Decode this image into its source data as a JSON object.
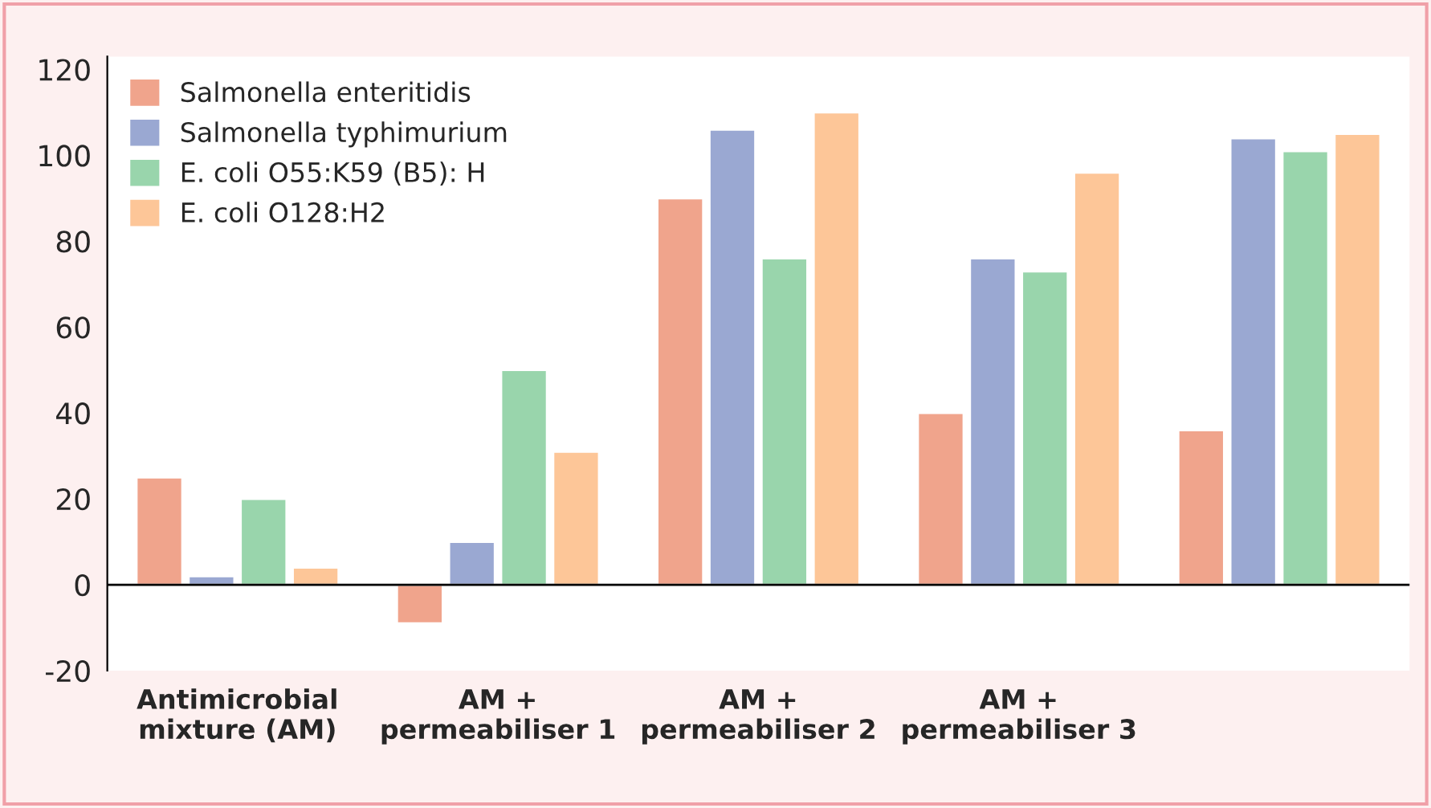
{
  "chart_data": {
    "type": "bar",
    "categories": [
      "Antimicrobial\nmixture (AM)",
      "AM +\npermeabiliser 1",
      "AM +\npermeabiliser 2",
      "AM +\npermeabiliser 3",
      null
    ],
    "series": [
      {
        "name": "Salmonella enteritidis",
        "color": "#f0a48c",
        "values": [
          25,
          -9,
          90,
          40,
          36
        ]
      },
      {
        "name": "Salmonella typhimurium",
        "color": "#9aa8d2",
        "values": [
          2,
          10,
          106,
          76,
          104
        ]
      },
      {
        "name": "E. coli O55:K59 (B5): H",
        "color": "#99d5ac",
        "values": [
          20,
          50,
          76,
          73,
          101
        ]
      },
      {
        "name": "E. coli O128:H2",
        "color": "#fdc698",
        "values": [
          4,
          31,
          110,
          96,
          105
        ]
      }
    ],
    "ylim": [
      -20,
      123
    ],
    "yticks": [
      -20,
      0,
      20,
      40,
      60,
      80,
      100,
      120
    ],
    "grid": false,
    "ref_lines": [
      {
        "axis": "y",
        "value": 0,
        "color": "#000000",
        "line_style": "solid"
      }
    ],
    "legend": "top left"
  }
}
